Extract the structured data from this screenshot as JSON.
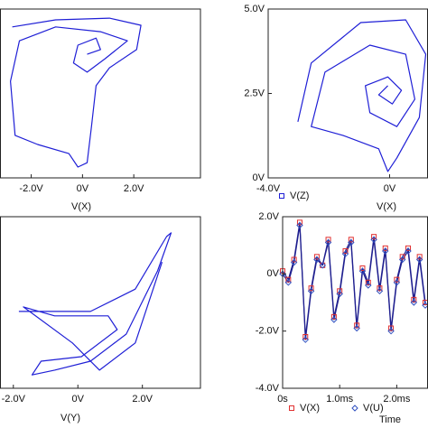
{
  "chart_data": [
    {
      "type": "line",
      "color": "#1f1fd6",
      "x_label": "V(X)",
      "x": [
        -2.74,
        -1.05,
        1.05,
        2.28,
        2.11,
        1.05,
        0.53,
        0.35,
        0.18,
        -0.18,
        -0.53,
        -1.75,
        -2.63,
        -2.81,
        -2.46,
        -1.05,
        0.7,
        1.75,
        0.88,
        0.18,
        -0.35,
        -0.18,
        0.53,
        0.7,
        0.18
      ],
      "values": [
        4.47,
        4.68,
        4.73,
        4.52,
        3.8,
        3.26,
        2.73,
        1.52,
        0.45,
        0.32,
        0.72,
        0.99,
        1.26,
        2.86,
        4.06,
        4.47,
        4.33,
        4.06,
        3.53,
        3.13,
        3.4,
        3.93,
        4.14,
        3.8,
        3.66
      ],
      "xlim": [
        -3.2,
        4.6
      ],
      "ylim": [
        0,
        5
      ],
      "xticks": [
        {
          "value": -2,
          "label": "-2.0V"
        },
        {
          "value": 0,
          "label": "0V"
        },
        {
          "value": 2,
          "label": "2.0V"
        }
      ]
    },
    {
      "type": "line",
      "x_label": "V(X)",
      "x": [
        -3.02,
        -2.58,
        -0.95,
        0.53,
        1.19,
        0.98,
        0.24,
        -0.06,
        -0.36,
        -1.54,
        -2.58,
        -2.13,
        -0.65,
        0.53,
        0.83,
        0.24,
        -0.65,
        -0.8,
        -0.06,
        0.39,
        0.09,
        -0.36,
        -0.06
      ],
      "series": [
        {
          "name": "V(Z)",
          "color": "#1f1fd6",
          "values": [
            1.66,
            3.4,
            4.6,
            4.68,
            3.66,
            1.79,
            0.59,
            0.19,
            0.86,
            1.26,
            1.52,
            3.13,
            3.93,
            3.66,
            2.33,
            1.52,
            1.93,
            2.73,
            2.99,
            2.59,
            2.19,
            2.46,
            2.73
          ]
        }
      ],
      "xlim": [
        -4,
        1.25
      ],
      "ylim": [
        0,
        5
      ],
      "xticks": [
        {
          "value": -4,
          "label": "-4.0V"
        },
        {
          "value": 0,
          "label": "0V"
        }
      ],
      "yticks": [
        {
          "value": 0,
          "label": "0V"
        },
        {
          "value": 2.5,
          "label": "2.5V"
        },
        {
          "value": 5,
          "label": "5.0V"
        }
      ]
    },
    {
      "type": "line",
      "color": "#1f1fd6",
      "x_label": "V(Y)",
      "x": [
        -1.83,
        0.39,
        1.78,
        2.75,
        2.89,
        2.47,
        1.5,
        0.39,
        -0.72,
        -1.42,
        -1.14,
        0.11,
        1.22,
        0.94,
        -0.72,
        -1.69,
        -0.17,
        0.67,
        1.78,
        2.61
      ],
      "values": [
        2.24,
        2.24,
        2.89,
        4.42,
        4.53,
        3.42,
        1.58,
        0.79,
        0.53,
        0.39,
        0.79,
        0.92,
        1.71,
        2.11,
        2.11,
        2.37,
        1.32,
        0.53,
        1.32,
        3.68
      ],
      "xlim": [
        -2.4,
        3.8
      ],
      "ylim": [
        0,
        5
      ],
      "xticks": [
        {
          "value": -2,
          "label": "-2.0V"
        },
        {
          "value": 0,
          "label": "0V"
        },
        {
          "value": 2,
          "label": "2.0V"
        }
      ]
    },
    {
      "type": "line",
      "x_label": "Time",
      "x": [
        0,
        0.1,
        0.2,
        0.3,
        0.4,
        0.5,
        0.6,
        0.7,
        0.8,
        0.9,
        1.0,
        1.1,
        1.2,
        1.3,
        1.4,
        1.5,
        1.6,
        1.7,
        1.8,
        1.9,
        2.0,
        2.1,
        2.2,
        2.3,
        2.4,
        2.5
      ],
      "series": [
        {
          "name": "V(X)",
          "color": "#1f1f8f",
          "marker": "square",
          "marker_color": "#e03030",
          "values": [
            0.1,
            -0.2,
            0.5,
            1.8,
            -2.2,
            -0.5,
            0.6,
            0.3,
            1.2,
            -1.5,
            -0.6,
            0.8,
            1.2,
            -1.8,
            0.2,
            -0.3,
            1.3,
            -0.5,
            0.9,
            -1.9,
            -0.2,
            0.6,
            0.9,
            -0.9,
            0.6,
            -1.0
          ]
        },
        {
          "name": "V(U)",
          "color": "#1f1f8f",
          "marker": "diamond",
          "marker_color": "#3050c0",
          "values": [
            0.0,
            -0.3,
            0.4,
            1.7,
            -2.3,
            -0.6,
            0.5,
            0.3,
            1.1,
            -1.6,
            -0.7,
            0.7,
            1.1,
            -1.9,
            0.1,
            -0.4,
            1.2,
            -0.6,
            0.8,
            -2.0,
            -0.3,
            0.5,
            0.8,
            -1.0,
            0.5,
            -1.1
          ]
        }
      ],
      "xlim": [
        0,
        2.54
      ],
      "ylim": [
        -4,
        2
      ],
      "xticks": [
        {
          "value": 0,
          "label": "0s"
        },
        {
          "value": 1,
          "label": "1.0ms"
        },
        {
          "value": 2,
          "label": "2.0ms"
        }
      ],
      "yticks": [
        {
          "value": 2,
          "label": "2.0V"
        },
        {
          "value": 0,
          "label": "0V"
        },
        {
          "value": -2,
          "label": "-2.0V"
        },
        {
          "value": -4,
          "label": "-4.0V"
        }
      ]
    }
  ]
}
